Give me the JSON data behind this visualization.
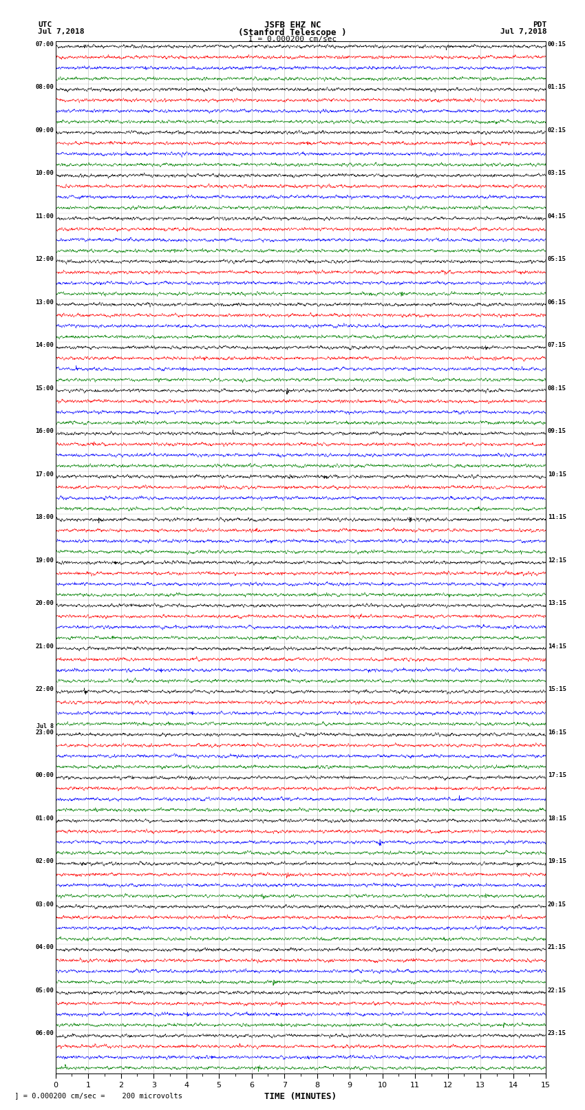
{
  "title_line1": "JSFB EHZ NC",
  "title_line2": "(Stanford Telescope )",
  "scale_text": "I = 0.000200 cm/sec",
  "bottom_text": " ] = 0.000200 cm/sec =    200 microvolts",
  "utc_label": "UTC",
  "utc_date": "Jul 7,2018",
  "pdt_label": "PDT",
  "pdt_date": "Jul 7,2018",
  "xlabel": "TIME (MINUTES)",
  "left_times": [
    "07:00",
    "08:00",
    "09:00",
    "10:00",
    "11:00",
    "12:00",
    "13:00",
    "14:00",
    "15:00",
    "16:00",
    "17:00",
    "18:00",
    "19:00",
    "20:00",
    "21:00",
    "22:00",
    "23:00",
    "00:00",
    "01:00",
    "02:00",
    "03:00",
    "04:00",
    "05:00",
    "06:00"
  ],
  "left_times_special": [
    16
  ],
  "right_times": [
    "00:15",
    "01:15",
    "02:15",
    "03:15",
    "04:15",
    "05:15",
    "06:15",
    "07:15",
    "08:15",
    "09:15",
    "10:15",
    "11:15",
    "12:15",
    "13:15",
    "14:15",
    "15:15",
    "16:15",
    "17:15",
    "18:15",
    "19:15",
    "20:15",
    "21:15",
    "22:15",
    "23:15"
  ],
  "jul8_row": 17,
  "n_rows": 24,
  "traces_per_row": 4,
  "colors": [
    "black",
    "red",
    "blue",
    "green"
  ],
  "bg_color": "white",
  "fig_width": 8.5,
  "fig_height": 16.13,
  "dpi": 100,
  "xlim": [
    0,
    15
  ],
  "xticks": [
    0,
    1,
    2,
    3,
    4,
    5,
    6,
    7,
    8,
    9,
    10,
    11,
    12,
    13,
    14,
    15
  ],
  "seed": 42
}
